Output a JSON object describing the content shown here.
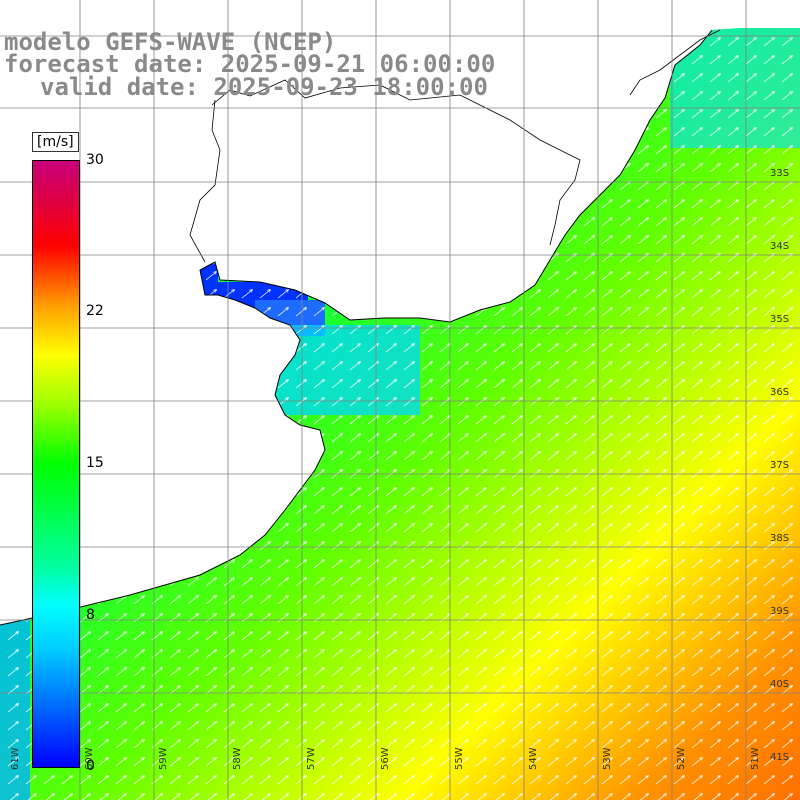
{
  "title": {
    "line1": "modelo GEFS-WAVE (NCEP)",
    "line2": "forecast date: 2025-09-21 06:00:00",
    "line3": "valid date: 2025-09-23 18:00:00"
  },
  "colorbar": {
    "units": "[m/s]",
    "ticks": [
      "30",
      "22",
      "15",
      "8",
      "0"
    ],
    "tick_values": [
      30,
      22,
      15,
      8,
      0
    ],
    "range": [
      0,
      30
    ]
  },
  "axes": {
    "lon_labels": [
      "61W",
      "60W",
      "59W",
      "58W",
      "57W",
      "56W",
      "55W",
      "54W",
      "53W",
      "52W",
      "51W"
    ],
    "lat_labels": [
      "33S",
      "34S",
      "35S",
      "36S",
      "37S",
      "38S",
      "39S",
      "40S",
      "41S"
    ]
  },
  "map": {
    "field": "wind speed",
    "land_color": "#ffffff",
    "grid_color": "#808080"
  }
}
